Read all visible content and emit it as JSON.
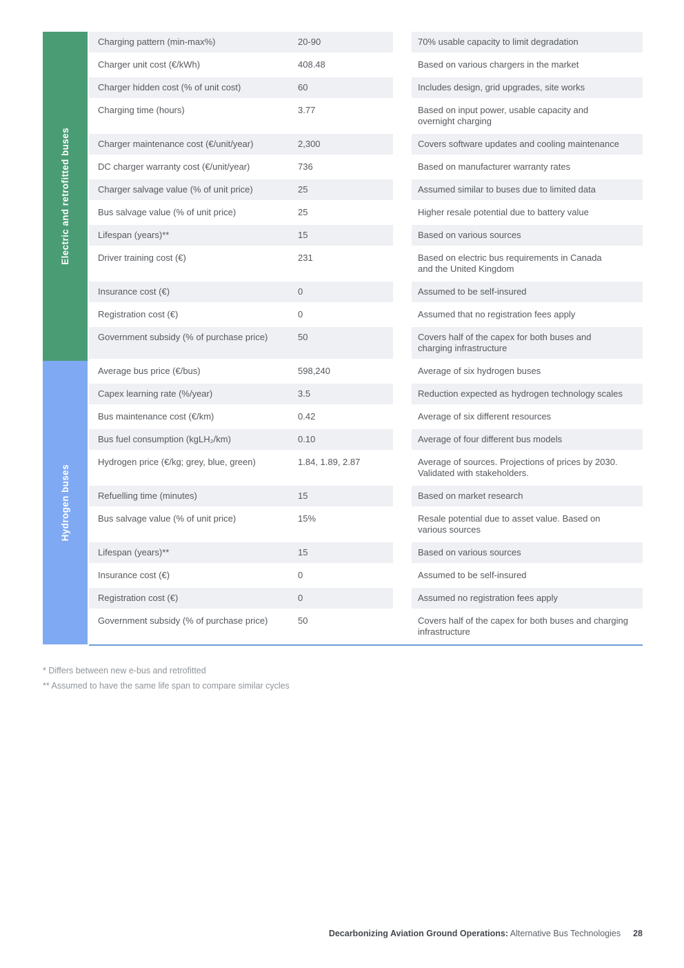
{
  "colors": {
    "electric_accent": "#4a9c74",
    "hydrogen_accent": "#7fa9f2",
    "row_stripe": "#eef0f3",
    "bottom_rule": "#6d9bd3"
  },
  "table": {
    "sections": [
      {
        "id": "electric",
        "label": "Electric and retrofitted buses",
        "color": "#4a9c74",
        "rows": [
          {
            "parameter": "Charging pattern (min-max%)",
            "value": "20-90",
            "description": "70% usable capacity to limit degradation",
            "shaded": true
          },
          {
            "parameter": "Charger unit cost (€/kWh)",
            "value": "408.48",
            "description": "Based on various chargers in the market",
            "shaded": false
          },
          {
            "parameter": "Charger hidden cost (% of unit cost)",
            "value": "60",
            "description": "Includes design, grid upgrades, site works",
            "shaded": true
          },
          {
            "parameter": "Charging time (hours)",
            "value": "3.77",
            "description": "Based on input power, usable capacity and\novernight charging",
            "shaded": false
          },
          {
            "parameter": "Charger maintenance cost (€/unit/year)",
            "value": "2,300",
            "description": "Covers software updates and cooling maintenance",
            "shaded": true
          },
          {
            "parameter": "DC charger warranty cost (€/unit/year)",
            "value": "736",
            "description": "Based on manufacturer warranty rates",
            "shaded": false
          },
          {
            "parameter": "Charger salvage value (% of unit price)",
            "value": "25",
            "description": "Assumed similar to buses due to limited data",
            "shaded": true
          },
          {
            "parameter": "Bus salvage value (% of unit price)",
            "value": "25",
            "description": "Higher resale potential due to battery value",
            "shaded": false
          },
          {
            "parameter": "Lifespan (years)**",
            "value": "15",
            "description": "Based on various sources",
            "shaded": true
          },
          {
            "parameter": "Driver training cost (€)",
            "value": "231",
            "description": "Based on electric bus requirements in Canada\nand the United Kingdom",
            "shaded": false
          },
          {
            "parameter": "Insurance cost (€)",
            "value": "0",
            "description": "Assumed to be self-insured",
            "shaded": true
          },
          {
            "parameter": "Registration cost (€)",
            "value": "0",
            "description": "Assumed that no registration fees apply",
            "shaded": false
          },
          {
            "parameter": "Government subsidy (% of purchase price)",
            "value": "50",
            "description": "Covers half of the capex for both buses and\ncharging infrastructure",
            "shaded": true
          }
        ]
      },
      {
        "id": "hydrogen",
        "label": "Hydrogen buses",
        "color": "#7fa9f2",
        "rows": [
          {
            "parameter": "Average bus price (€/bus)",
            "value": "598,240",
            "description": "Average of six hydrogen buses",
            "shaded": false
          },
          {
            "parameter": "Capex learning rate (%/year)",
            "value": "3.5",
            "description": "Reduction expected as hydrogen technology scales",
            "shaded": true
          },
          {
            "parameter": "Bus maintenance cost (€/km)",
            "value": "0.42",
            "description": "Average of six different resources",
            "shaded": false
          },
          {
            "parameter": "Bus fuel consumption (kgLH₂/km)",
            "parameter_subscript": "2",
            "value": "0.10",
            "description": "Average of four different bus models",
            "shaded": true
          },
          {
            "parameter": "Hydrogen price (€/kg; grey, blue, green)",
            "value": "1.84, 1.89, 2.87",
            "description": "Average of sources. Projections of prices by 2030.\nValidated with stakeholders.",
            "shaded": false
          },
          {
            "parameter": "Refuelling time (minutes)",
            "value": "15",
            "description": "Based on market research",
            "shaded": true
          },
          {
            "parameter": "Bus salvage value (% of unit price)",
            "value": "15%",
            "description": "Resale potential due to asset value. Based on\nvarious sources",
            "shaded": false
          },
          {
            "parameter": "Lifespan (years)**",
            "value": "15",
            "description": "Based on various sources",
            "shaded": true
          },
          {
            "parameter": "Insurance cost (€)",
            "value": "0",
            "description": "Assumed to be self-insured",
            "shaded": false
          },
          {
            "parameter": "Registration cost (€)",
            "value": "0",
            "description": "Assumed no registration fees apply",
            "shaded": true
          },
          {
            "parameter": "Government subsidy (% of purchase price)",
            "value": "50",
            "description": "Covers half of the capex for both buses and charging\ninfrastructure",
            "shaded": false
          }
        ]
      }
    ]
  },
  "footnotes": [
    "* Differs between new e-bus and retrofitted",
    "** Assumed to have the same life span to compare similar cycles"
  ],
  "footer": {
    "title_bold": "Decarbonizing Aviation Ground Operations:",
    "title_regular": " Alternative Bus Technologies",
    "page_number": "28"
  }
}
